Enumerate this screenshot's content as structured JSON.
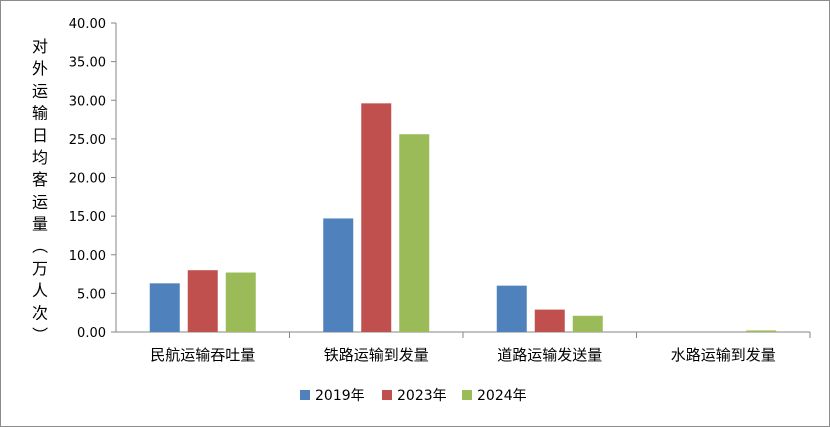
{
  "chart_data": {
    "type": "bar",
    "ylabel": "对外运输日均客运量（万人次）",
    "ylim": [
      0,
      40
    ],
    "y_ticks": [
      "0.00",
      "5.00",
      "10.00",
      "15.00",
      "20.00",
      "25.00",
      "30.00",
      "35.00",
      "40.00"
    ],
    "categories": [
      "民航运输吞吐量",
      "铁路运输到发量",
      "道路运输发送量",
      "水路运输到发量"
    ],
    "series": [
      {
        "name": "2019年",
        "color": "#4f81bd",
        "values": [
          6.3,
          14.7,
          6.0,
          0.0
        ]
      },
      {
        "name": "2023年",
        "color": "#c0504d",
        "values": [
          8.0,
          29.6,
          2.9,
          0.0
        ]
      },
      {
        "name": "2024年",
        "color": "#9bbb59",
        "values": [
          7.7,
          25.6,
          2.1,
          0.2
        ]
      }
    ],
    "grid": false,
    "legend_position": "bottom"
  }
}
